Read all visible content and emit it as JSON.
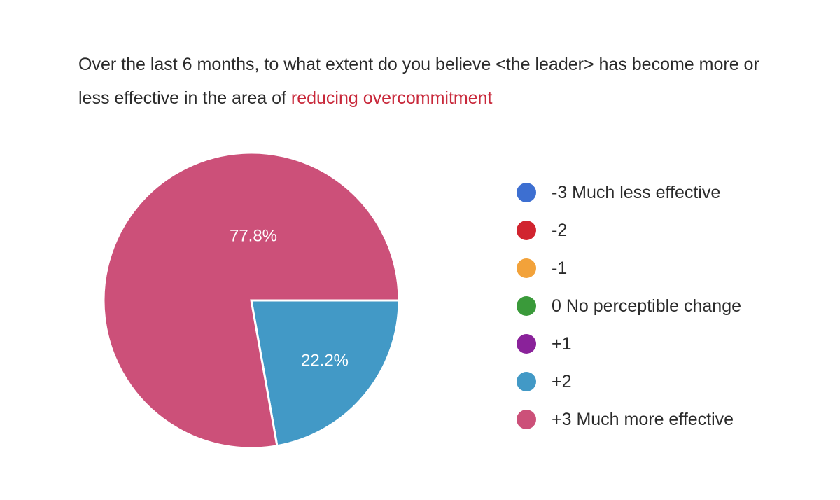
{
  "question": {
    "prefix": "Over the last 6 months, to what extent do you believe <the leader> has become more or less effective in the area of ",
    "highlight": "reducing overcommitment"
  },
  "chart_data": {
    "type": "pie",
    "title": "Over the last 6 months, to what extent do you believe <the leader> has become more or less effective in the area of reducing overcommitment",
    "legend_position": "right",
    "categories": [
      "-3 Much less effective",
      "-2",
      "-1",
      "0 No perceptible change",
      "+1",
      "+2",
      "+3 Much more effective"
    ],
    "colors": [
      "#3d6fd1",
      "#d1242f",
      "#f2a23a",
      "#3a9a3a",
      "#8a229a",
      "#4299c6",
      "#cc5079"
    ],
    "values": [
      0,
      0,
      0,
      0,
      0,
      22.2,
      77.8
    ],
    "labels": [
      "",
      "",
      "",
      "",
      "",
      "22.2%",
      "77.8%"
    ]
  }
}
